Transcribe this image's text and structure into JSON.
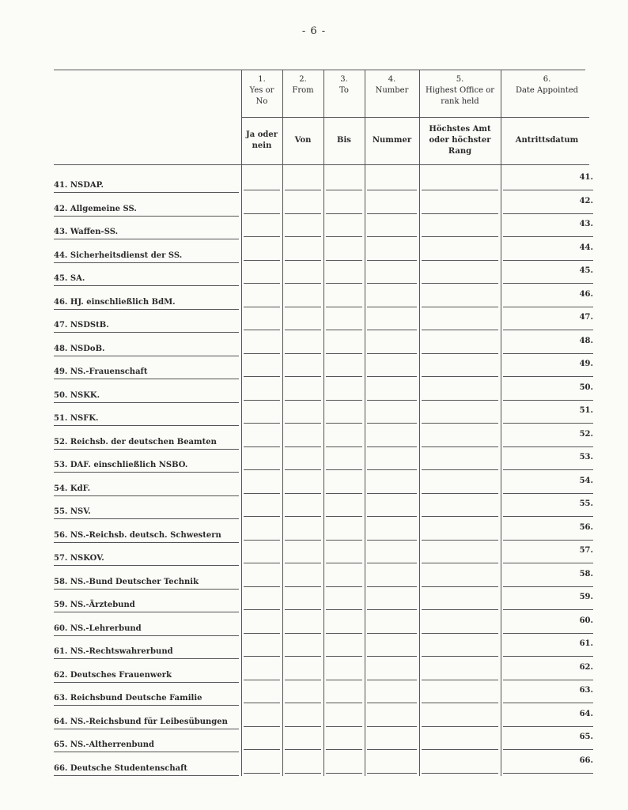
{
  "page_number": "- 6 -",
  "columns": [
    {
      "num": "1.",
      "en": "Yes or No",
      "de": "Ja oder nein"
    },
    {
      "num": "2.",
      "en": "From",
      "de": "Von"
    },
    {
      "num": "3.",
      "en": "To",
      "de": "Bis"
    },
    {
      "num": "4.",
      "en": "Number",
      "de": "Nummer"
    },
    {
      "num": "5.",
      "en": "Highest Office or rank held",
      "de": "Höchstes Amt oder höchster Rang"
    },
    {
      "num": "6.",
      "en": "Date Appointed",
      "de": "Antrittsdatum"
    }
  ],
  "rows": [
    {
      "label": "41. NSDAP.",
      "num": "41."
    },
    {
      "label": "42. Allgemeine SS.",
      "num": "42."
    },
    {
      "label": "43. Waffen-SS.",
      "num": "43."
    },
    {
      "label": "44. Sicherheitsdienst der SS.",
      "num": "44."
    },
    {
      "label": "45. SA.",
      "num": "45."
    },
    {
      "label": "46. HJ. einschließlich BdM.",
      "num": "46."
    },
    {
      "label": "47. NSDStB.",
      "num": "47."
    },
    {
      "label": "48. NSDoB.",
      "num": "48."
    },
    {
      "label": "49. NS.-Frauenschaft",
      "num": "49."
    },
    {
      "label": "50. NSKK.",
      "num": "50."
    },
    {
      "label": "51. NSFK.",
      "num": "51."
    },
    {
      "label": "52. Reichsb. der deutschen Beamten",
      "num": "52."
    },
    {
      "label": "53. DAF. einschließlich NSBO.",
      "num": "53."
    },
    {
      "label": "54. KdF.",
      "num": "54."
    },
    {
      "label": "55. NSV.",
      "num": "55."
    },
    {
      "label": "56. NS.-Reichsb. deutsch. Schwestern",
      "num": "56."
    },
    {
      "label": "57. NSKOV.",
      "num": "57."
    },
    {
      "label": "58. NS.-Bund Deutscher Technik",
      "num": "58."
    },
    {
      "label": "59. NS.-Ärztebund",
      "num": "59."
    },
    {
      "label": "60. NS.-Lehrerbund",
      "num": "60."
    },
    {
      "label": "61. NS.-Rechtswahrerbund",
      "num": "61."
    },
    {
      "label": "62. Deutsches Frauenwerk",
      "num": "62."
    },
    {
      "label": "63. Reichsbund Deutsche Familie",
      "num": "63."
    },
    {
      "label": "64. NS.-Reichsbund für Leibesübungen",
      "num": "64."
    },
    {
      "label": "65. NS.-Altherrenbund",
      "num": "65."
    },
    {
      "label": "66. Deutsche Studentenschaft",
      "num": "66."
    }
  ]
}
